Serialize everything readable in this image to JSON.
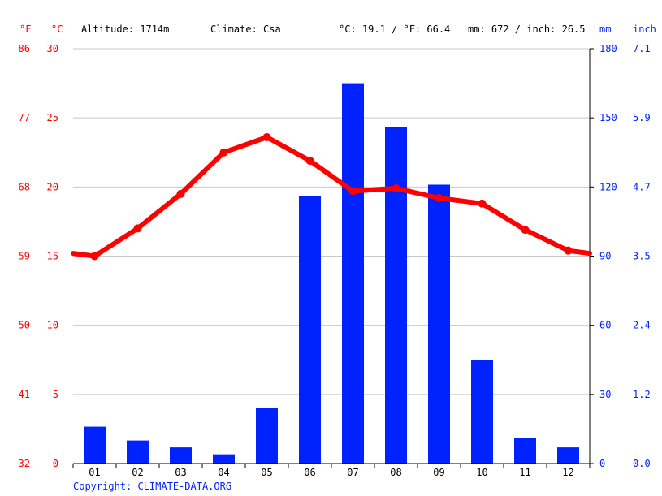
{
  "header": {
    "unit_f": "°F",
    "unit_c": "°C",
    "altitude": "Altitude: 1714m",
    "climate": "Climate: Csa",
    "avg_temp": "°C: 19.1 / °F: 66.4",
    "precip_total": "mm: 672 / inch: 26.5",
    "unit_mm": "mm",
    "unit_inch": "inch"
  },
  "footer": {
    "copyright": "Copyright: CLIMATE-DATA.ORG"
  },
  "colors": {
    "temperature": "#ff0000",
    "precipitation": "#0022ff",
    "grid": "#c8c8c8"
  },
  "chart_data": {
    "type": "bar",
    "categories": [
      "01",
      "02",
      "03",
      "04",
      "05",
      "06",
      "07",
      "08",
      "09",
      "10",
      "11",
      "12"
    ],
    "series": [
      {
        "type": "bar",
        "axis": "right",
        "values": [
          16,
          10,
          7,
          4,
          24,
          116,
          165,
          146,
          121,
          45,
          11,
          7
        ]
      },
      {
        "type": "line",
        "axis": "left",
        "values": [
          15.0,
          17.0,
          19.5,
          22.5,
          23.6,
          21.9,
          19.7,
          19.9,
          19.2,
          18.8,
          16.9,
          15.4
        ],
        "edge_start": 15.2,
        "edge_end": 15.2
      }
    ],
    "ylim_celsius": [
      0,
      30
    ],
    "ylim_mm": [
      0,
      180
    ],
    "ticks_fahrenheit": [
      "32",
      "41",
      "50",
      "59",
      "68",
      "77",
      "86"
    ],
    "ticks_celsius": [
      "0",
      "5",
      "10",
      "15",
      "20",
      "25",
      "30"
    ],
    "ticks_mm": [
      "0",
      "30",
      "60",
      "90",
      "120",
      "150",
      "180"
    ],
    "ticks_inch": [
      "0.0",
      "1.2",
      "2.4",
      "3.5",
      "4.7",
      "5.9",
      "7.1"
    ],
    "grid": true
  }
}
